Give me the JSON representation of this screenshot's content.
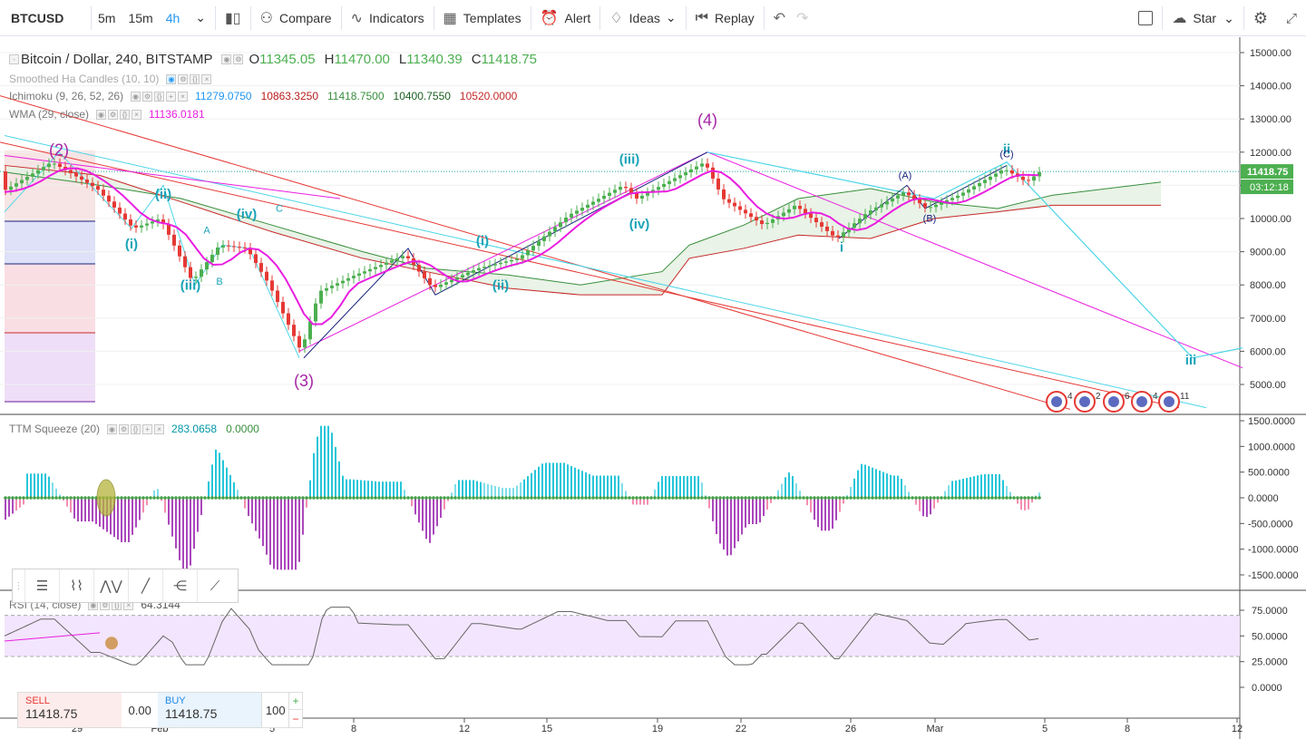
{
  "toolbar": {
    "symbol": "BTCUSD",
    "intervals": [
      "5m",
      "15m",
      "4h"
    ],
    "active_interval": "4h",
    "compare_label": "Compare",
    "indicators_label": "Indicators",
    "templates_label": "Templates",
    "alert_label": "Alert",
    "ideas_label": "Ideas",
    "replay_label": "Replay",
    "star_label": "Star"
  },
  "legend": {
    "title": "Bitcoin / Dollar, 240, BITSTAMP",
    "open": "11345.05",
    "high": "11470.00",
    "low": "11340.39",
    "close": "11418.75",
    "smoothed_ha": "Smoothed Ha Candles (10, 10)",
    "ichimoku_name": "Ichimoku (9, 26, 52, 26)",
    "ichimoku_values": [
      "11279.0750",
      "10863.3250",
      "11418.7500",
      "10400.7550",
      "10520.0000"
    ],
    "wma_name": "WMA (29, close)",
    "wma_value": "11136.0181",
    "ttm_name": "TTM Squeeze (20)",
    "ttm_values": [
      "283.0658",
      "0.0000"
    ],
    "rsi_name": "RSI (14, close)",
    "rsi_value": "64.3144"
  },
  "price_axis": {
    "labels": [
      "15000.00",
      "14000.00",
      "13000.00",
      "12000.00",
      "11000.00",
      "10000.00",
      "9000.00",
      "8000.00",
      "7000.00",
      "6000.00",
      "5000.00"
    ],
    "current_price": "11418.75",
    "countdown": "03:12:18"
  },
  "ttm_axis": {
    "labels": [
      "1500.0000",
      "1000.0000",
      "500.0000",
      "0.0000",
      "-500.0000",
      "-1000.0000",
      "-1500.0000"
    ]
  },
  "rsi_axis": {
    "labels": [
      "75.0000",
      "50.0000",
      "25.0000",
      "0.0000"
    ]
  },
  "time_axis": {
    "labels": [
      "29",
      "Feb",
      "5",
      "8",
      "12",
      "15",
      "19",
      "22",
      "26",
      "Mar",
      "5",
      "8",
      "12"
    ]
  },
  "wave_labels": {
    "major": [
      "(2)",
      "(3)",
      "(4)"
    ],
    "minor": [
      "(i)",
      "(ii)",
      "(iii)",
      "(iv)",
      "(i)",
      "(ii)",
      "(iii)",
      "(iv)",
      "i",
      "ii",
      "iii"
    ],
    "abc": [
      "A",
      "B",
      "C",
      "(A)",
      "(B)",
      "(C)"
    ]
  },
  "events": [
    "4",
    "2",
    "6",
    "4",
    "11"
  ],
  "order_panel": {
    "sell_label": "SELL",
    "sell_price": "11418.75",
    "spread": "0.00",
    "buy_label": "BUY",
    "buy_price": "11418.75",
    "quantity": "100"
  },
  "colors": {
    "up": "#4caf50",
    "down": "#e53935",
    "wma": "#e91ee0",
    "cyan": "#4dd6e8",
    "red_line": "#e53935",
    "navy": "#1a237e"
  }
}
